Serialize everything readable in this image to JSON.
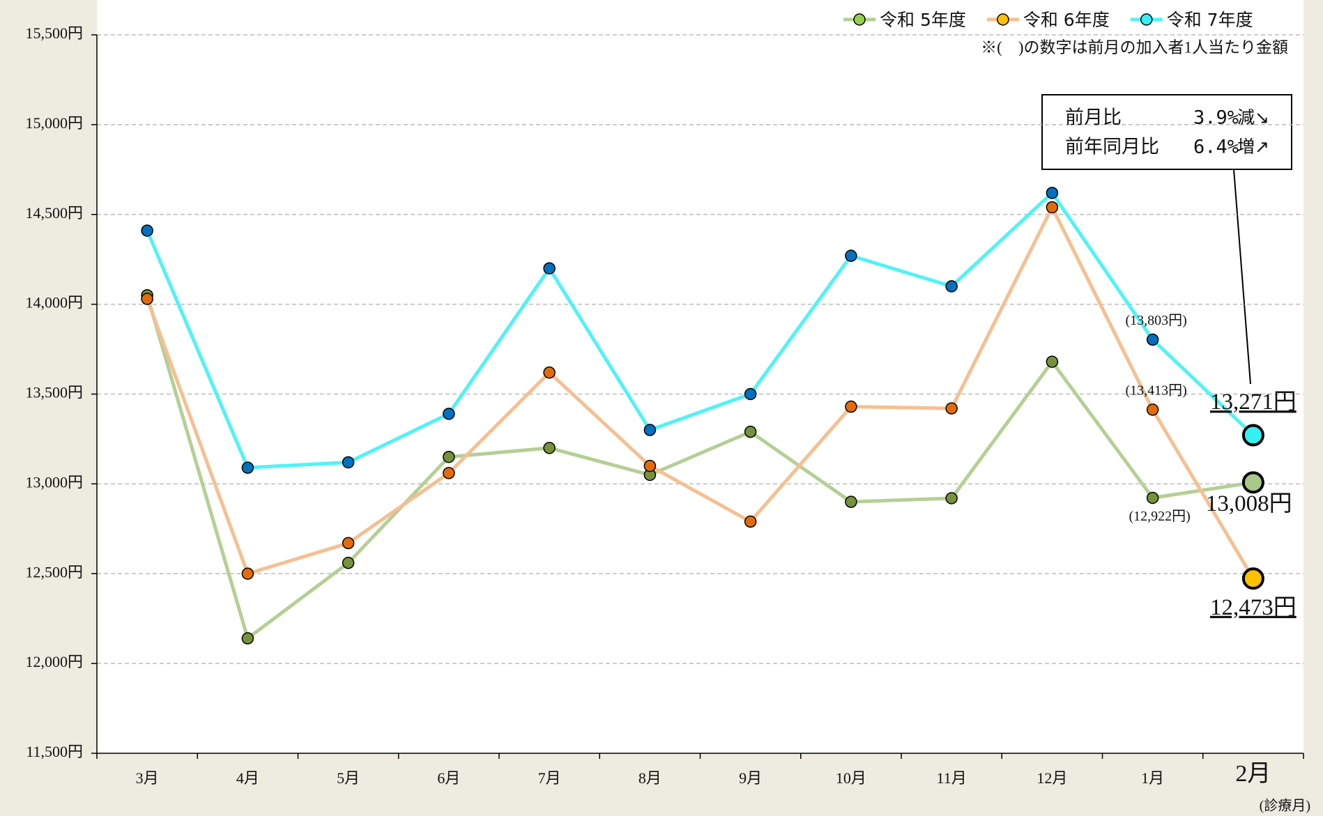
{
  "chart_data": {
    "type": "line",
    "categories": [
      "3月",
      "4月",
      "5月",
      "6月",
      "7月",
      "8月",
      "9月",
      "10月",
      "11月",
      "12月",
      "1月",
      "2月"
    ],
    "highlight_index": 11,
    "highlight_category_color": "#e36c0a",
    "x_label": "(診療月)",
    "note": "※(　)の数字は前月の加入者1人当たり金額",
    "ylim": [
      11500,
      15500
    ],
    "yticks": [
      {
        "value": 11500,
        "label": "11,500円"
      },
      {
        "value": 12000,
        "label": "12,000円"
      },
      {
        "value": 12500,
        "label": "12,500円"
      },
      {
        "value": 13000,
        "label": "13,000円"
      },
      {
        "value": 13500,
        "label": "13,500円"
      },
      {
        "value": 14000,
        "label": "14,000円"
      },
      {
        "value": 14500,
        "label": "14,500円"
      },
      {
        "value": 15000,
        "label": "15,000円"
      },
      {
        "value": 15500,
        "label": "15,500円"
      }
    ],
    "grid": true,
    "legend": "top-right",
    "series": [
      {
        "name": "令和 5年度",
        "color": "#b5cf94",
        "marker_color": "#76923c",
        "highlight_color": "#a9c98a",
        "legend_color": "#92d050",
        "label_color": "#76923c",
        "label_underline": false,
        "values": [
          14050,
          12140,
          12560,
          13150,
          13200,
          13050,
          13290,
          12900,
          12920,
          13680,
          12922,
          13008
        ],
        "value_labels": [
          null,
          null,
          null,
          null,
          null,
          null,
          null,
          null,
          null,
          null,
          "(12,922円)",
          "13,008円"
        ]
      },
      {
        "name": "令和 6年度",
        "color": "#f6bf92",
        "marker_color": "#e36c0a",
        "highlight_color": "#ffc000",
        "legend_color": "#ffc000",
        "label_color": "#e36c0a",
        "label_underline": true,
        "values": [
          14030,
          12500,
          12670,
          13060,
          13620,
          13100,
          12790,
          13430,
          13420,
          14540,
          13413,
          12473
        ],
        "value_labels": [
          null,
          null,
          null,
          null,
          null,
          null,
          null,
          null,
          null,
          null,
          "(13,413円)",
          "12,473円"
        ]
      },
      {
        "name": "令和 7年度",
        "color": "#4ff3f7",
        "marker_color": "#0070c0",
        "highlight_color": "#33f0f5",
        "legend_color": "#33f0f5",
        "label_color": "#1ab0e8",
        "label_underline": true,
        "values": [
          14410,
          13090,
          13120,
          13390,
          14200,
          13300,
          13500,
          14270,
          14100,
          14620,
          13803,
          13271
        ],
        "value_labels": [
          null,
          null,
          null,
          null,
          null,
          null,
          null,
          null,
          null,
          null,
          "(13,803円)",
          "13,271円"
        ]
      }
    ],
    "annotation": {
      "rows": [
        {
          "label": "前月比",
          "value": "3.9%",
          "change": "減↘",
          "change_color": "#1ab0e8"
        },
        {
          "label": "前年同月比",
          "value": "6.4%",
          "change": "増↗",
          "change_color": "#e00000"
        }
      ]
    }
  }
}
